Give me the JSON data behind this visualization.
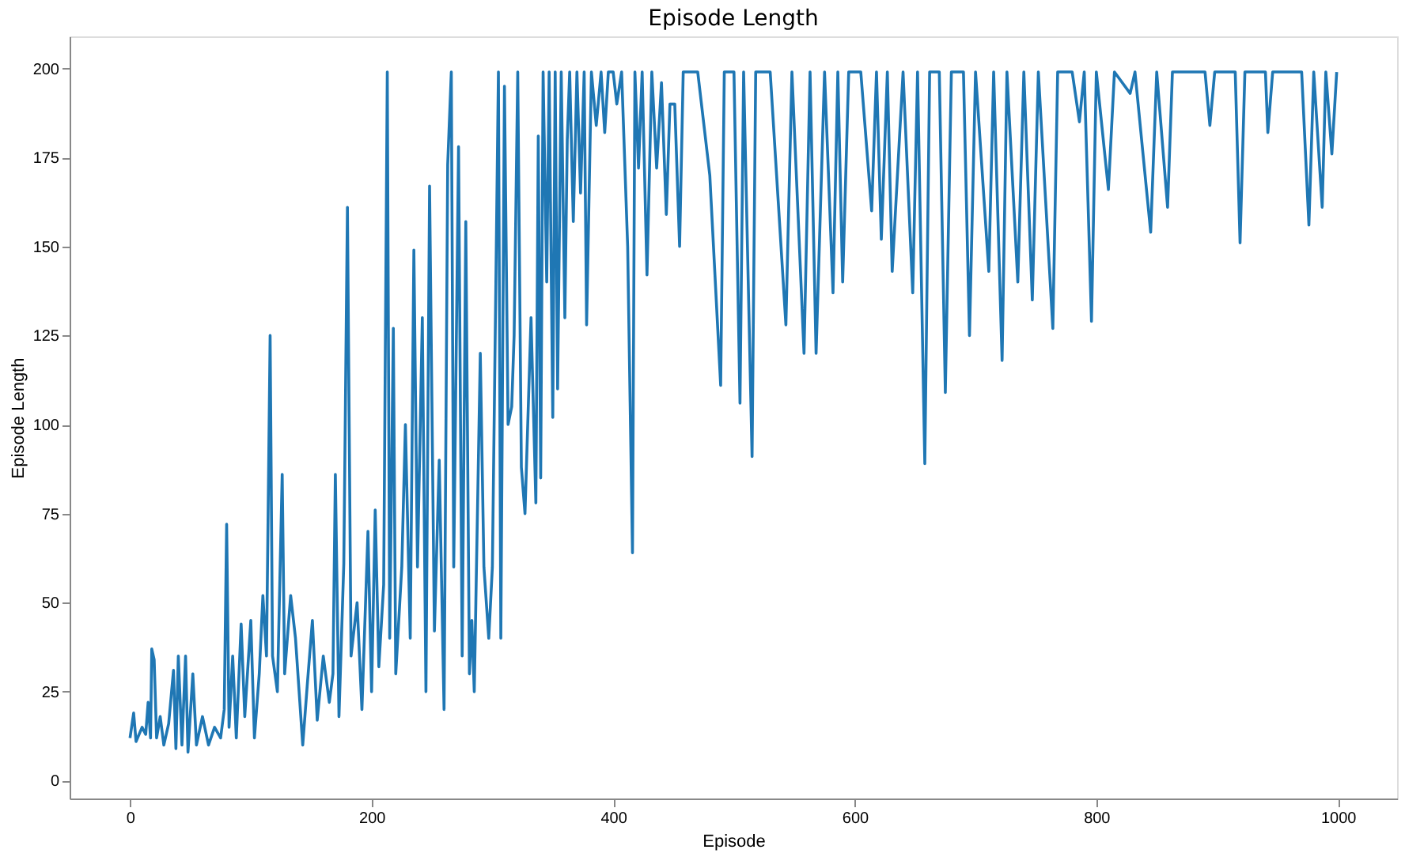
{
  "chart_data": {
    "type": "line",
    "title": "Episode Length",
    "xlabel": "Episode",
    "ylabel": "Episode Length",
    "x": [
      0,
      3,
      5,
      10,
      13,
      15,
      17,
      18,
      20,
      22,
      25,
      28,
      32,
      36,
      38,
      40,
      43,
      46,
      48,
      52,
      55,
      60,
      65,
      70,
      75,
      78,
      80,
      82,
      85,
      88,
      92,
      95,
      100,
      103,
      107,
      110,
      113,
      116,
      118,
      122,
      126,
      128,
      133,
      137,
      140,
      143,
      147,
      151,
      155,
      160,
      165,
      168,
      170,
      173,
      177,
      180,
      183,
      188,
      192,
      197,
      200,
      203,
      206,
      210,
      213,
      215,
      218,
      220,
      225,
      228,
      232,
      235,
      238,
      242,
      245,
      248,
      252,
      256,
      260,
      263,
      266,
      268,
      272,
      275,
      278,
      281,
      283,
      285,
      290,
      293,
      297,
      300,
      303,
      305,
      307,
      310,
      313,
      316,
      318,
      321,
      324,
      327,
      332,
      336,
      338,
      340,
      342,
      345,
      347,
      350,
      352,
      354,
      357,
      360,
      362,
      364,
      367,
      370,
      373,
      376,
      378,
      382,
      386,
      390,
      393,
      396,
      400,
      403,
      407,
      412,
      416,
      418,
      421,
      424,
      428,
      432,
      436,
      440,
      444,
      447,
      451,
      455,
      458,
      470,
      480,
      489,
      492,
      500,
      505,
      508,
      515,
      518,
      530,
      543,
      548,
      558,
      563,
      568,
      575,
      582,
      586,
      590,
      595,
      605,
      614,
      618,
      622,
      627,
      631,
      640,
      648,
      652,
      658,
      662,
      670,
      675,
      680,
      690,
      695,
      700,
      711,
      715,
      722,
      726,
      735,
      740,
      747,
      752,
      764,
      768,
      780,
      786,
      790,
      796,
      800,
      810,
      815,
      828,
      832,
      845,
      850,
      859,
      863,
      890,
      894,
      898,
      915,
      919,
      923,
      940,
      942,
      946,
      970,
      976,
      980,
      987,
      990,
      995,
      999
    ],
    "series": [
      {
        "color": "#1f77b4",
        "values": [
          12,
          19,
          11,
          15,
          13,
          22,
          12,
          37,
          34,
          12,
          18,
          10,
          16,
          31,
          9,
          35,
          10,
          35,
          8,
          30,
          10,
          18,
          10,
          15,
          12,
          20,
          72,
          15,
          35,
          12,
          44,
          18,
          45,
          12,
          30,
          52,
          35,
          125,
          35,
          25,
          86,
          30,
          52,
          40,
          25,
          10,
          28,
          45,
          17,
          35,
          22,
          30,
          86,
          18,
          61,
          161,
          35,
          50,
          20,
          70,
          25,
          76,
          32,
          55,
          199,
          40,
          127,
          30,
          60,
          100,
          40,
          149,
          60,
          130,
          25,
          167,
          42,
          90,
          20,
          173,
          199,
          60,
          178,
          35,
          157,
          30,
          45,
          25,
          120,
          60,
          40,
          60,
          143,
          199,
          40,
          195,
          100,
          105,
          125,
          199,
          88,
          75,
          130,
          78,
          181,
          85,
          199,
          140,
          199,
          102,
          199,
          110,
          199,
          130,
          180,
          199,
          157,
          199,
          165,
          199,
          128,
          199,
          184,
          199,
          182,
          199,
          199,
          190,
          199,
          150,
          64,
          199,
          172,
          199,
          142,
          199,
          172,
          196,
          159,
          190,
          190,
          150,
          199,
          199,
          170,
          111,
          199,
          199,
          106,
          199,
          91,
          199,
          199,
          128,
          199,
          120,
          199,
          120,
          199,
          137,
          199,
          140,
          199,
          199,
          160,
          199,
          152,
          199,
          143,
          199,
          137,
          199,
          89,
          199,
          199,
          109,
          199,
          199,
          125,
          199,
          143,
          199,
          118,
          199,
          140,
          199,
          135,
          199,
          127,
          199,
          199,
          185,
          199,
          129,
          199,
          166,
          199,
          193,
          199,
          154,
          199,
          161,
          199,
          199,
          184,
          199,
          199,
          151,
          199,
          199,
          182,
          199,
          199,
          156,
          199,
          161,
          199,
          176,
          199
        ]
      }
    ],
    "xlim": [
      -50,
      1049
    ],
    "ylim": [
      -5,
      209
    ],
    "xticks": [
      0,
      200,
      400,
      600,
      800,
      1000
    ],
    "yticks": [
      0,
      25,
      50,
      75,
      100,
      125,
      150,
      175,
      200
    ],
    "grid": false,
    "line_style": "solid",
    "marker": "none"
  }
}
